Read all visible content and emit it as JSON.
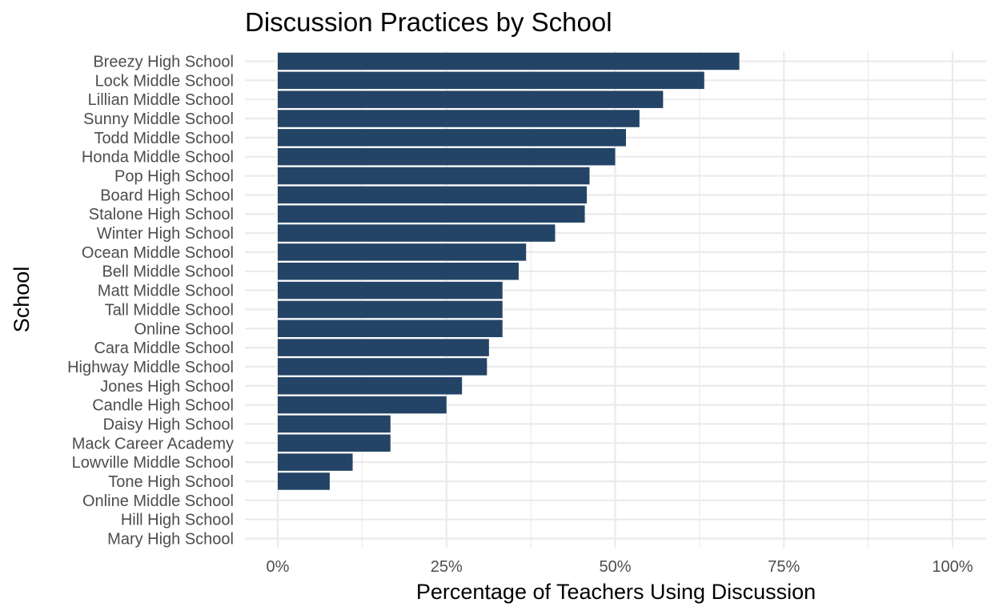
{
  "chart_data": {
    "type": "bar",
    "orientation": "horizontal",
    "title": "Discussion Practices by School",
    "xlabel": "Percentage of Teachers Using Discussion",
    "ylabel": "School",
    "xlim": [
      0,
      1
    ],
    "xticks": [
      0,
      0.25,
      0.5,
      0.75,
      1
    ],
    "xtick_labels": [
      "0%",
      "25%",
      "50%",
      "75%",
      "100%"
    ],
    "grid": true,
    "bar_color": "#234466",
    "categories": [
      "Breezy High School",
      "Lock Middle School",
      "Lillian Middle School",
      "Sunny Middle School",
      "Todd Middle School",
      "Honda Middle School",
      "Pop High School",
      "Board High School",
      "Stalone High School",
      "Winter High School",
      "Ocean Middle School",
      "Bell Middle School",
      "Matt Middle School",
      "Tall Middle School",
      "Online School",
      "Cara Middle School",
      "Highway Middle School",
      "Jones High School",
      "Candle High School",
      "Daisy High School",
      "Mack Career Academy",
      "Lowville Middle School",
      "Tone High School",
      "Online Middle School",
      "Hill High School",
      "Mary High School"
    ],
    "values": [
      0.684,
      0.632,
      0.571,
      0.536,
      0.516,
      0.5,
      0.462,
      0.458,
      0.455,
      0.411,
      0.368,
      0.357,
      0.333,
      0.333,
      0.333,
      0.313,
      0.31,
      0.273,
      0.25,
      0.167,
      0.167,
      0.111,
      0.077,
      0,
      0,
      0
    ]
  }
}
